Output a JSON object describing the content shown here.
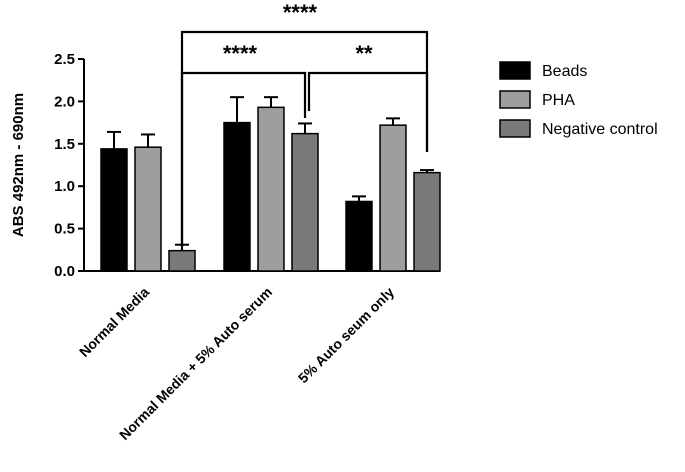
{
  "chart_data": {
    "type": "bar",
    "ylabel": "ABS 492nm - 690nm",
    "ylim": [
      0,
      2.5
    ],
    "yticks": [
      "0.0",
      "0.5",
      "1.0",
      "1.5",
      "2.0",
      "2.5"
    ],
    "grid": false,
    "legend_position": "right",
    "categories": [
      "Normal Media",
      "Normal Media + 5% Auto serum",
      "5% Auto seum only"
    ],
    "series": [
      {
        "name": "Beads",
        "color": "#000000",
        "values": [
          1.44,
          1.75,
          0.82
        ],
        "errors": [
          0.2,
          0.3,
          0.06
        ]
      },
      {
        "name": "PHA",
        "color": "#9e9e9e",
        "values": [
          1.46,
          1.93,
          1.72
        ],
        "errors": [
          0.15,
          0.12,
          0.08
        ]
      },
      {
        "name": "Negative control",
        "color": "#7a7a7a",
        "values": [
          0.24,
          1.62,
          1.16
        ],
        "errors": [
          0.07,
          0.12,
          0.03
        ]
      }
    ],
    "significance": [
      {
        "label": "****",
        "from": [
          0,
          2
        ],
        "to": [
          2,
          2
        ]
      },
      {
        "label": "****",
        "from": [
          0,
          2
        ],
        "to": [
          1,
          2
        ]
      },
      {
        "label": "**",
        "from": [
          1,
          2
        ],
        "to": [
          2,
          2
        ]
      }
    ]
  }
}
